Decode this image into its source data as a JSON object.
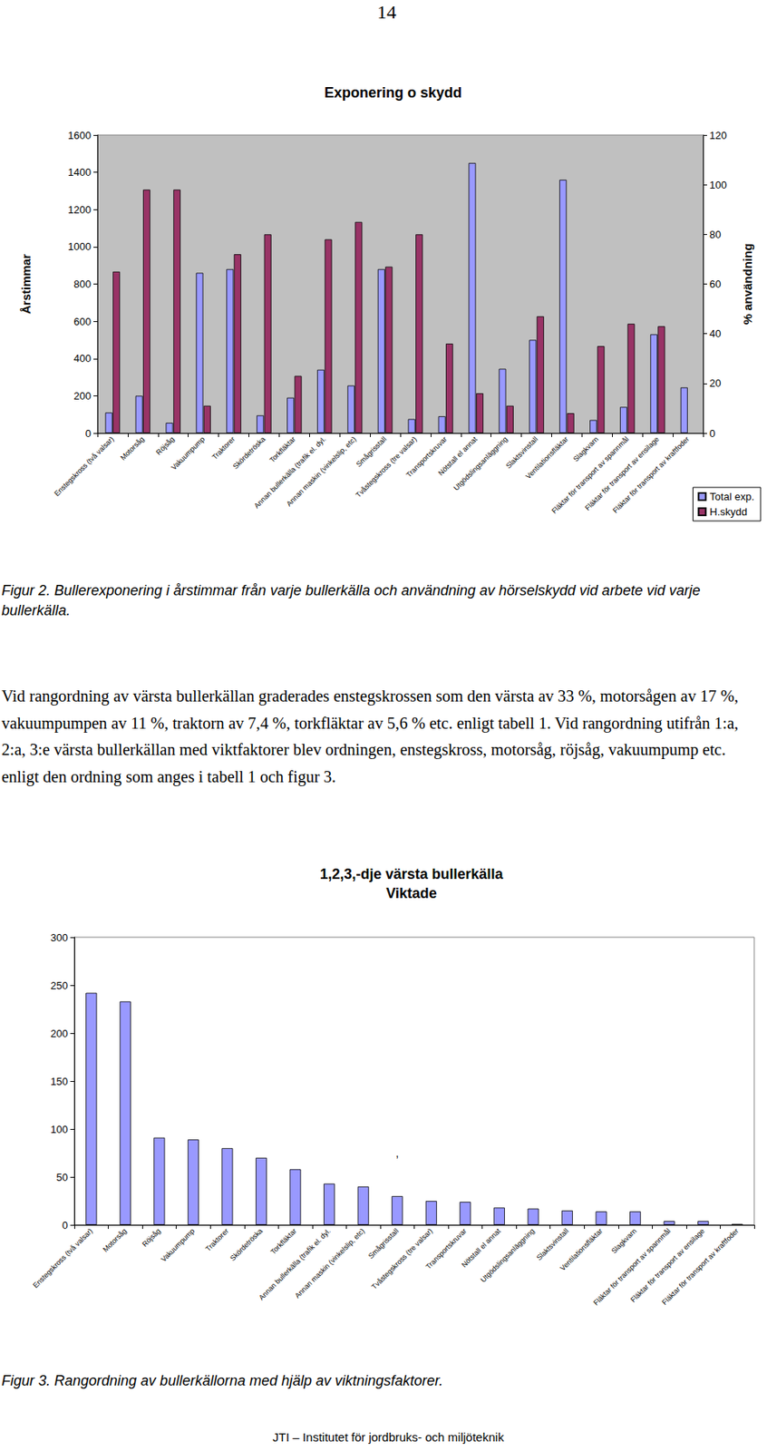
{
  "page_number": "14",
  "chart_data": [
    {
      "type": "bar",
      "title": "Exponering o skydd",
      "categories": [
        "Enstegskross (två valsar)",
        "Motorsåg",
        "Röjsåg",
        "Vakuumpump",
        "Traktorer",
        "Skördetröska",
        "Torkfläktar",
        "Annan bullerkälla (trafik el. dyl.",
        "Annan maskin (vinkelslip, etc)",
        "Smågrisstall",
        "Tvåstegskross (tre valsar)",
        "Transportskruvar",
        "Nötstall el annat",
        "Utgödslingsanläggning",
        "Slaktsvinstall",
        "Ventilationsfläktar",
        "Slagkvarn",
        "Fläktar för transport av spannmål",
        "Fläktar för transport av ensilage",
        "Fläktar för transport av kraftfoder"
      ],
      "series": [
        {
          "name": "Total exp.",
          "color": "#9999ff",
          "values": [
            110,
            200,
            55,
            860,
            880,
            95,
            190,
            340,
            255,
            880,
            75,
            90,
            1450,
            345,
            500,
            1360,
            70,
            140,
            530,
            245
          ]
        },
        {
          "name": "H.skydd",
          "color": "#993366",
          "axis": "y2",
          "values": [
            65,
            98,
            98,
            11,
            72,
            80,
            23,
            78,
            85,
            67,
            80,
            36,
            16,
            11,
            47,
            8,
            35,
            44,
            43,
            null
          ]
        }
      ],
      "ylabel": "Årstimmar",
      "y2label": "% användning",
      "ylim": [
        0,
        1600
      ],
      "yticks": [
        0,
        200,
        400,
        600,
        800,
        1000,
        1200,
        1400,
        1600
      ],
      "y2lim": [
        0,
        120
      ],
      "y2ticks": [
        0,
        20,
        40,
        60,
        80,
        100,
        120
      ],
      "grid": false,
      "legend": "lower right"
    },
    {
      "type": "bar",
      "title": "1,2,3,-dje värsta bullerkälla",
      "subtitle": "Viktade",
      "categories": [
        "Enstegskross (två valsar)",
        "Motorsåg",
        "Röjsåg",
        "Vakuumpump",
        "Traktorer",
        "Skördetröska",
        "Torkfläktar",
        "Annan bullerkälla (trafik el. dyl.",
        "Annan maskin (vinkelslip, etc)",
        "Smågrisstall",
        "Tvåstegskross (tre valsar)",
        "Transportskruvar",
        "Nötstall el annat",
        "Utgödslingsanläggning",
        "Slaktsvinstall",
        "Ventilationsfläktar",
        "Slagkvarn",
        "Fläktar för transport av spannmål",
        "Fläktar för transport av ensilage",
        "Fläktar för transport av kraftfoder"
      ],
      "values": [
        242,
        233,
        91,
        89,
        80,
        70,
        58,
        43,
        40,
        30,
        25,
        24,
        18,
        17,
        15,
        14,
        14,
        4,
        4,
        1
      ],
      "color": "#9999ff",
      "ylim": [
        0,
        300
      ],
      "yticks": [
        0,
        50,
        100,
        150,
        200,
        250,
        300
      ],
      "grid": false,
      "annotations": [
        {
          "text": ",",
          "x": "Smågrisstall",
          "y": 75
        }
      ]
    }
  ],
  "captions": [
    "Figur 2. Bullerexponering i årstimmar från varje bullerkälla och användning av hörselskydd vid arbete vid varje bullerkälla.",
    "Figur 3. Rangordning av bullerkällorna med hjälp av viktningsfaktorer."
  ],
  "paragraph": "Vid rangordning av värsta bullerkällan graderades enstegskrossen som den värsta av 33 %, motorsågen av 17 %, vakuumpumpen av 11 %, traktorn av 7,4 %, torkfläktar av 5,6 % etc. enligt tabell 1. Vid rangordning utifrån 1:a, 2:a, 3:e värsta bullerkällan med viktfaktorer blev ordningen, enstegskross, motorsåg, röjsåg, vakuumpump etc. enligt den ordning som anges i tabell 1 och figur 3.",
  "footer": "JTI – Institutet för jordbruks- och miljöteknik"
}
